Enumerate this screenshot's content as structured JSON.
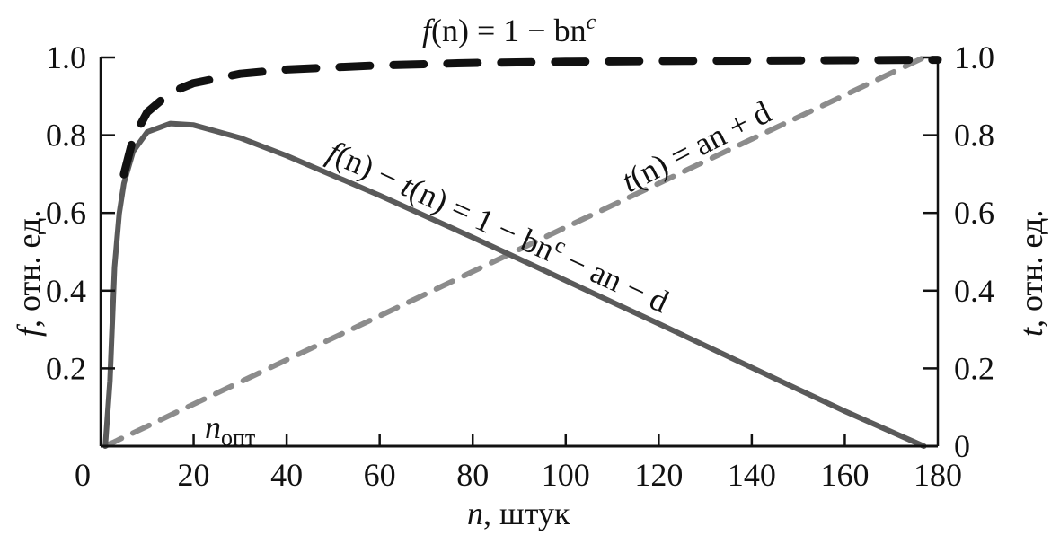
{
  "chart_data": {
    "type": "line",
    "title": "",
    "xlabel": "n, штук",
    "ylabel_left": "f, отн. ед.",
    "ylabel_right": "t, отн. ед.",
    "xlim": [
      0,
      180
    ],
    "ylim": [
      0,
      1.0
    ],
    "y2lim": [
      0,
      1.0
    ],
    "grid": false,
    "x_ticks": [
      "0",
      "20",
      "40",
      "60",
      "80",
      "100",
      "120",
      "140",
      "160",
      "180"
    ],
    "y_ticks_left": [
      "0.2",
      "0.4",
      "0.6",
      "0.8",
      "1.0"
    ],
    "y_ticks_right": [
      "0",
      "0.2",
      "0.4",
      "0.6",
      "0.8",
      "1.0"
    ],
    "x": [
      1,
      2,
      3,
      4,
      5,
      7,
      10,
      15,
      20,
      30,
      40,
      60,
      80,
      100,
      120,
      140,
      160,
      177,
      180
    ],
    "series": [
      {
        "name": "f(n) = 1 − bn^c",
        "style": "dashed",
        "color": "#111111",
        "values": [
          null,
          null,
          null,
          null,
          0.699,
          0.792,
          0.859,
          0.91,
          0.934,
          0.958,
          0.969,
          0.98,
          0.986,
          0.989,
          0.991,
          0.992,
          0.993,
          0.994,
          0.994
        ]
      },
      {
        "name": "t(n) = an + d",
        "style": "dashed",
        "color": "#8c8c8c",
        "values": [
          0,
          0.006,
          0.011,
          0.017,
          0.023,
          0.034,
          0.051,
          0.08,
          0.108,
          0.165,
          0.222,
          0.335,
          0.449,
          0.563,
          0.676,
          0.79,
          0.903,
          1.0,
          null
        ]
      },
      {
        "name": "f(n) − t(n) = 1 − bn^c − an − d",
        "style": "solid",
        "color": "#5a5a5a",
        "values": [
          0,
          0.168,
          0.46,
          0.598,
          0.676,
          0.758,
          0.808,
          0.83,
          0.826,
          0.793,
          0.747,
          0.645,
          0.537,
          0.426,
          0.315,
          0.202,
          0.09,
          0.0,
          null
        ]
      }
    ],
    "annotations": {
      "top": {
        "pre": "f",
        "mid": "(n) = 1 − bn",
        "sup": "c"
      },
      "diff": {
        "a": "f",
        "b": "(n) − ",
        "c": "t",
        "d": "(n) = 1 − bn",
        "sup": "c",
        "e": " − an − d"
      },
      "t": {
        "a": "t",
        "b": "(n) = an + d"
      },
      "nopt": {
        "n": "n",
        "sub": "опт"
      }
    },
    "labels": {
      "xlabel_var": "n",
      "xlabel_unit": ", штук",
      "yl_var": "f",
      "yl_unit": ", отн. ед.",
      "yr_var": "t",
      "yr_unit": ", отн. ед."
    }
  }
}
